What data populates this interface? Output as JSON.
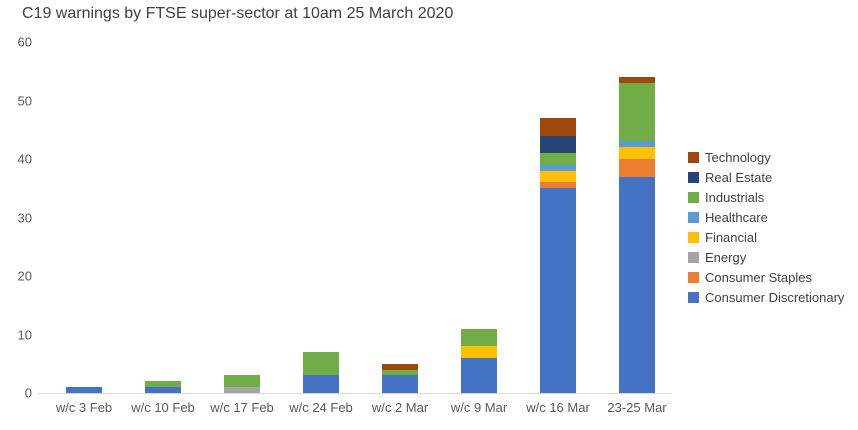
{
  "chart_data": {
    "type": "bar",
    "stacked": true,
    "title": "C19 warnings by FTSE super-sector at 10am 25 March 2020",
    "xlabel": "",
    "ylabel": "",
    "ylim": [
      0,
      60
    ],
    "yticks": [
      0,
      10,
      20,
      30,
      40,
      50,
      60
    ],
    "grid": false,
    "legend_position": "right",
    "categories": [
      "w/c 3 Feb",
      "w/c 10 Feb",
      "w/c 17 Feb",
      "w/c 24 Feb",
      "w/c 2 Mar",
      "w/c 9 Mar",
      "w/c 16 Mar",
      "23-25 Mar"
    ],
    "series": [
      {
        "name": "Consumer Discretionary",
        "color": "#4472c4",
        "values": [
          1,
          1,
          0,
          3,
          3,
          6,
          35,
          37
        ]
      },
      {
        "name": "Consumer Staples",
        "color": "#ed7d31",
        "values": [
          0,
          0,
          0,
          0,
          0,
          0,
          1,
          3
        ]
      },
      {
        "name": "Energy",
        "color": "#a5a5a5",
        "values": [
          0,
          0,
          1,
          0,
          0,
          0,
          0,
          0
        ]
      },
      {
        "name": "Financial",
        "color": "#ffc000",
        "values": [
          0,
          0,
          0,
          0,
          0,
          2,
          2,
          2
        ]
      },
      {
        "name": "Healthcare",
        "color": "#5b9bd5",
        "values": [
          0,
          0,
          0,
          0,
          0,
          0,
          1,
          1
        ]
      },
      {
        "name": "Industrials",
        "color": "#70ad47",
        "values": [
          0,
          1,
          2,
          4,
          1,
          3,
          2,
          10
        ]
      },
      {
        "name": "Real Estate",
        "color": "#264478",
        "values": [
          0,
          0,
          0,
          0,
          0,
          0,
          3,
          0
        ]
      },
      {
        "name": "Technology",
        "color": "#9e480e",
        "values": [
          0,
          0,
          0,
          0,
          1,
          0,
          3,
          1
        ]
      }
    ],
    "totals": [
      1,
      2,
      3,
      7,
      5,
      11,
      47,
      54
    ],
    "legend_order": [
      "Technology",
      "Real Estate",
      "Industrials",
      "Healthcare",
      "Financial",
      "Energy",
      "Consumer Staples",
      "Consumer Discretionary"
    ]
  },
  "colors": {
    "title_text": "#3f3f3f",
    "tick_text": "#595959",
    "axis_line": "#d9d9d9",
    "background": "#ffffff"
  }
}
